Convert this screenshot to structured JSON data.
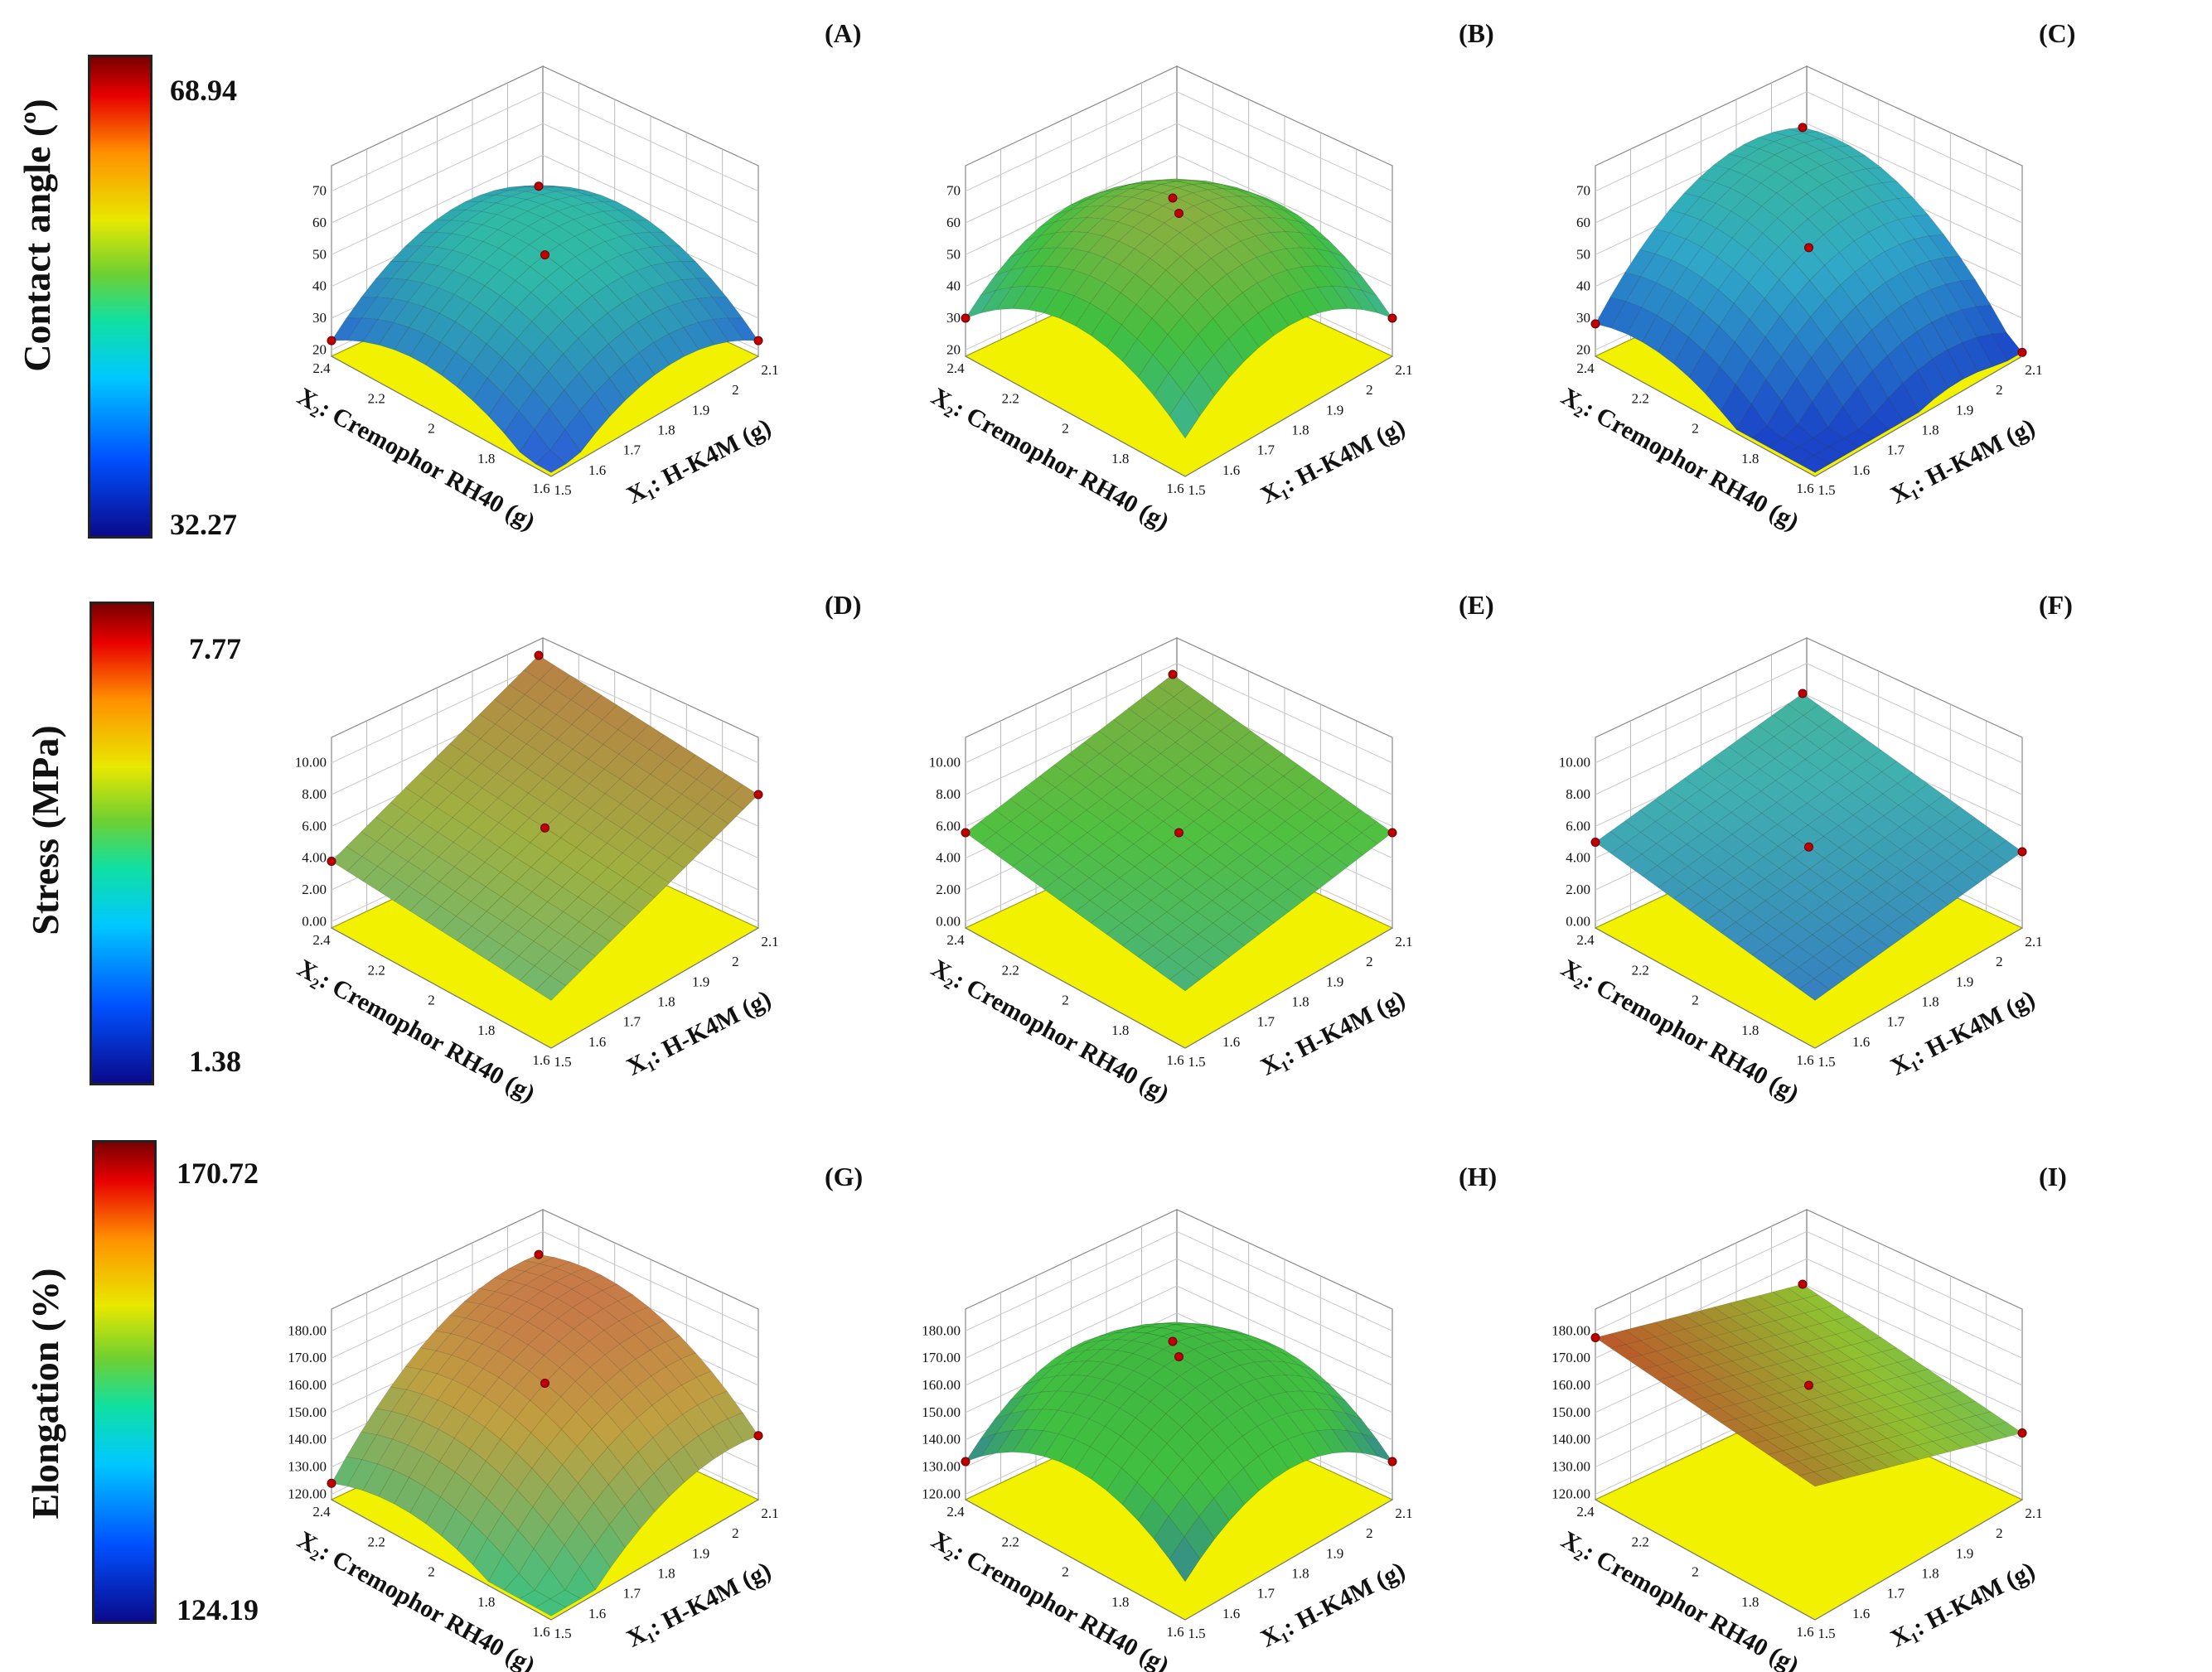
{
  "rows": [
    {
      "id": "contact",
      "legend_title": "Contact angle (º)",
      "bar_max": "68.94",
      "bar_min": "32.27",
      "z_ticks": [
        "20",
        "30",
        "40",
        "50",
        "60",
        "70"
      ],
      "panels": [
        {
          "label": "(A)",
          "shape": "dome",
          "colors": {
            "low": "#2a5cd8",
            "mid": "#2fb8a8",
            "high": "#3ad070"
          }
        },
        {
          "label": "(B)",
          "shape": "dome-high",
          "colors": {
            "low": "#3aa8d8",
            "mid": "#40c040",
            "high": "#d0a040"
          }
        },
        {
          "label": "(C)",
          "shape": "dome-tilted",
          "colors": {
            "low": "#1a40c8",
            "mid": "#30a8c8",
            "high": "#40c870"
          }
        }
      ]
    },
    {
      "id": "stress",
      "legend_title": "Stress (MPa)",
      "bar_max": "7.77",
      "bar_min": "1.38",
      "z_ticks": [
        "0.00",
        "2.00",
        "4.00",
        "6.00",
        "8.00",
        "10.00"
      ],
      "panels": [
        {
          "label": "(D)",
          "shape": "plane-up",
          "colors": {
            "low": "#40c0a0",
            "mid": "#a0b040",
            "high": "#c86048"
          }
        },
        {
          "label": "(E)",
          "shape": "plane",
          "colors": {
            "low": "#40a0d8",
            "mid": "#50c040",
            "high": "#c89040"
          }
        },
        {
          "label": "(F)",
          "shape": "plane-low",
          "colors": {
            "low": "#2a50d0",
            "mid": "#40b0b0",
            "high": "#50c050"
          }
        }
      ]
    },
    {
      "id": "elongation",
      "legend_title": "Elongation (%)",
      "bar_max": "170.72",
      "bar_min": "124.19",
      "z_ticks": [
        "120.00",
        "130.00",
        "140.00",
        "150.00",
        "160.00",
        "170.00",
        "180.00"
      ],
      "panels": [
        {
          "label": "(G)",
          "shape": "dome-up",
          "colors": {
            "low": "#40c080",
            "mid": "#c0a040",
            "high": "#d05050"
          }
        },
        {
          "label": "(H)",
          "shape": "dome-high",
          "colors": {
            "low": "#2a60d0",
            "mid": "#40c040",
            "high": "#40b040"
          }
        },
        {
          "label": "(I)",
          "shape": "plane-tilt",
          "colors": {
            "low": "#30b8a0",
            "mid": "#90c030",
            "high": "#d02828"
          }
        }
      ]
    }
  ],
  "axes": {
    "x2_label": "X₂: Cremophor RH40 (g)",
    "x1_label": "X₁: H-K4M (g)",
    "x2_ticks": [
      "1.6",
      "1.8",
      "2",
      "2.2",
      "2.4"
    ],
    "x1_ticks": [
      "1.5",
      "1.6",
      "1.7",
      "1.8",
      "1.9",
      "2",
      "2.1"
    ]
  },
  "chart_data": [
    {
      "type": "surface",
      "title": "(A)",
      "xlabel": "X₁: H-K4M (g)",
      "ylabel": "X₂: Cremophor RH40 (g)",
      "zlabel": "Contact angle (º)",
      "xlim": [
        1.5,
        2.1
      ],
      "ylim": [
        1.6,
        2.4
      ],
      "zlim": [
        20,
        70
      ],
      "colorbar_range": [
        32.27,
        68.94
      ]
    },
    {
      "type": "surface",
      "title": "(B)",
      "xlabel": "X₁: H-K4M (g)",
      "ylabel": "X₂: Cremophor RH40 (g)",
      "zlabel": "Contact angle (º)",
      "xlim": [
        1.5,
        2.1
      ],
      "ylim": [
        1.6,
        2.4
      ],
      "zlim": [
        20,
        70
      ],
      "colorbar_range": [
        32.27,
        68.94
      ]
    },
    {
      "type": "surface",
      "title": "(C)",
      "xlabel": "X₁: H-K4M (g)",
      "ylabel": "X₂: Cremophor RH40 (g)",
      "zlabel": "Contact angle (º)",
      "xlim": [
        1.5,
        2.1
      ],
      "ylim": [
        1.6,
        2.4
      ],
      "zlim": [
        20,
        70
      ],
      "colorbar_range": [
        32.27,
        68.94
      ]
    },
    {
      "type": "surface",
      "title": "(D)",
      "xlabel": "X₁: H-K4M (g)",
      "ylabel": "X₂: Cremophor RH40 (g)",
      "zlabel": "Stress (MPa)",
      "xlim": [
        1.5,
        2.1
      ],
      "ylim": [
        1.6,
        2.4
      ],
      "zlim": [
        0,
        10
      ],
      "colorbar_range": [
        1.38,
        7.77
      ]
    },
    {
      "type": "surface",
      "title": "(E)",
      "xlabel": "X₁: H-K4M (g)",
      "ylabel": "X₂: Cremophor RH40 (g)",
      "zlabel": "Stress (MPa)",
      "xlim": [
        1.5,
        2.1
      ],
      "ylim": [
        1.6,
        2.4
      ],
      "zlim": [
        0,
        10
      ],
      "colorbar_range": [
        1.38,
        7.77
      ]
    },
    {
      "type": "surface",
      "title": "(F)",
      "xlabel": "X₁: H-K4M (g)",
      "ylabel": "X₂: Cremophor RH40 (g)",
      "zlabel": "Stress (MPa)",
      "xlim": [
        1.5,
        2.1
      ],
      "ylim": [
        1.6,
        2.4
      ],
      "zlim": [
        0,
        10
      ],
      "colorbar_range": [
        1.38,
        7.77
      ]
    },
    {
      "type": "surface",
      "title": "(G)",
      "xlabel": "X₁: H-K4M (g)",
      "ylabel": "X₂: Cremophor RH40 (g)",
      "zlabel": "Elongation (%)",
      "xlim": [
        1.5,
        2.1
      ],
      "ylim": [
        1.6,
        2.4
      ],
      "zlim": [
        120,
        180
      ],
      "colorbar_range": [
        124.19,
        170.72
      ]
    },
    {
      "type": "surface",
      "title": "(H)",
      "xlabel": "X₁: H-K4M (g)",
      "ylabel": "X₂: Cremophor RH40 (g)",
      "zlabel": "Elongation (%)",
      "xlim": [
        1.5,
        2.1
      ],
      "ylim": [
        1.6,
        2.4
      ],
      "zlim": [
        120,
        180
      ],
      "colorbar_range": [
        124.19,
        170.72
      ]
    },
    {
      "type": "surface",
      "title": "(I)",
      "xlabel": "X₁: H-K4M (g)",
      "ylabel": "X₂: Cremophor RH40 (g)",
      "zlabel": "Elongation (%)",
      "xlim": [
        1.5,
        2.1
      ],
      "ylim": [
        1.6,
        2.4
      ],
      "zlim": [
        120,
        180
      ],
      "colorbar_range": [
        124.19,
        170.72
      ]
    }
  ]
}
